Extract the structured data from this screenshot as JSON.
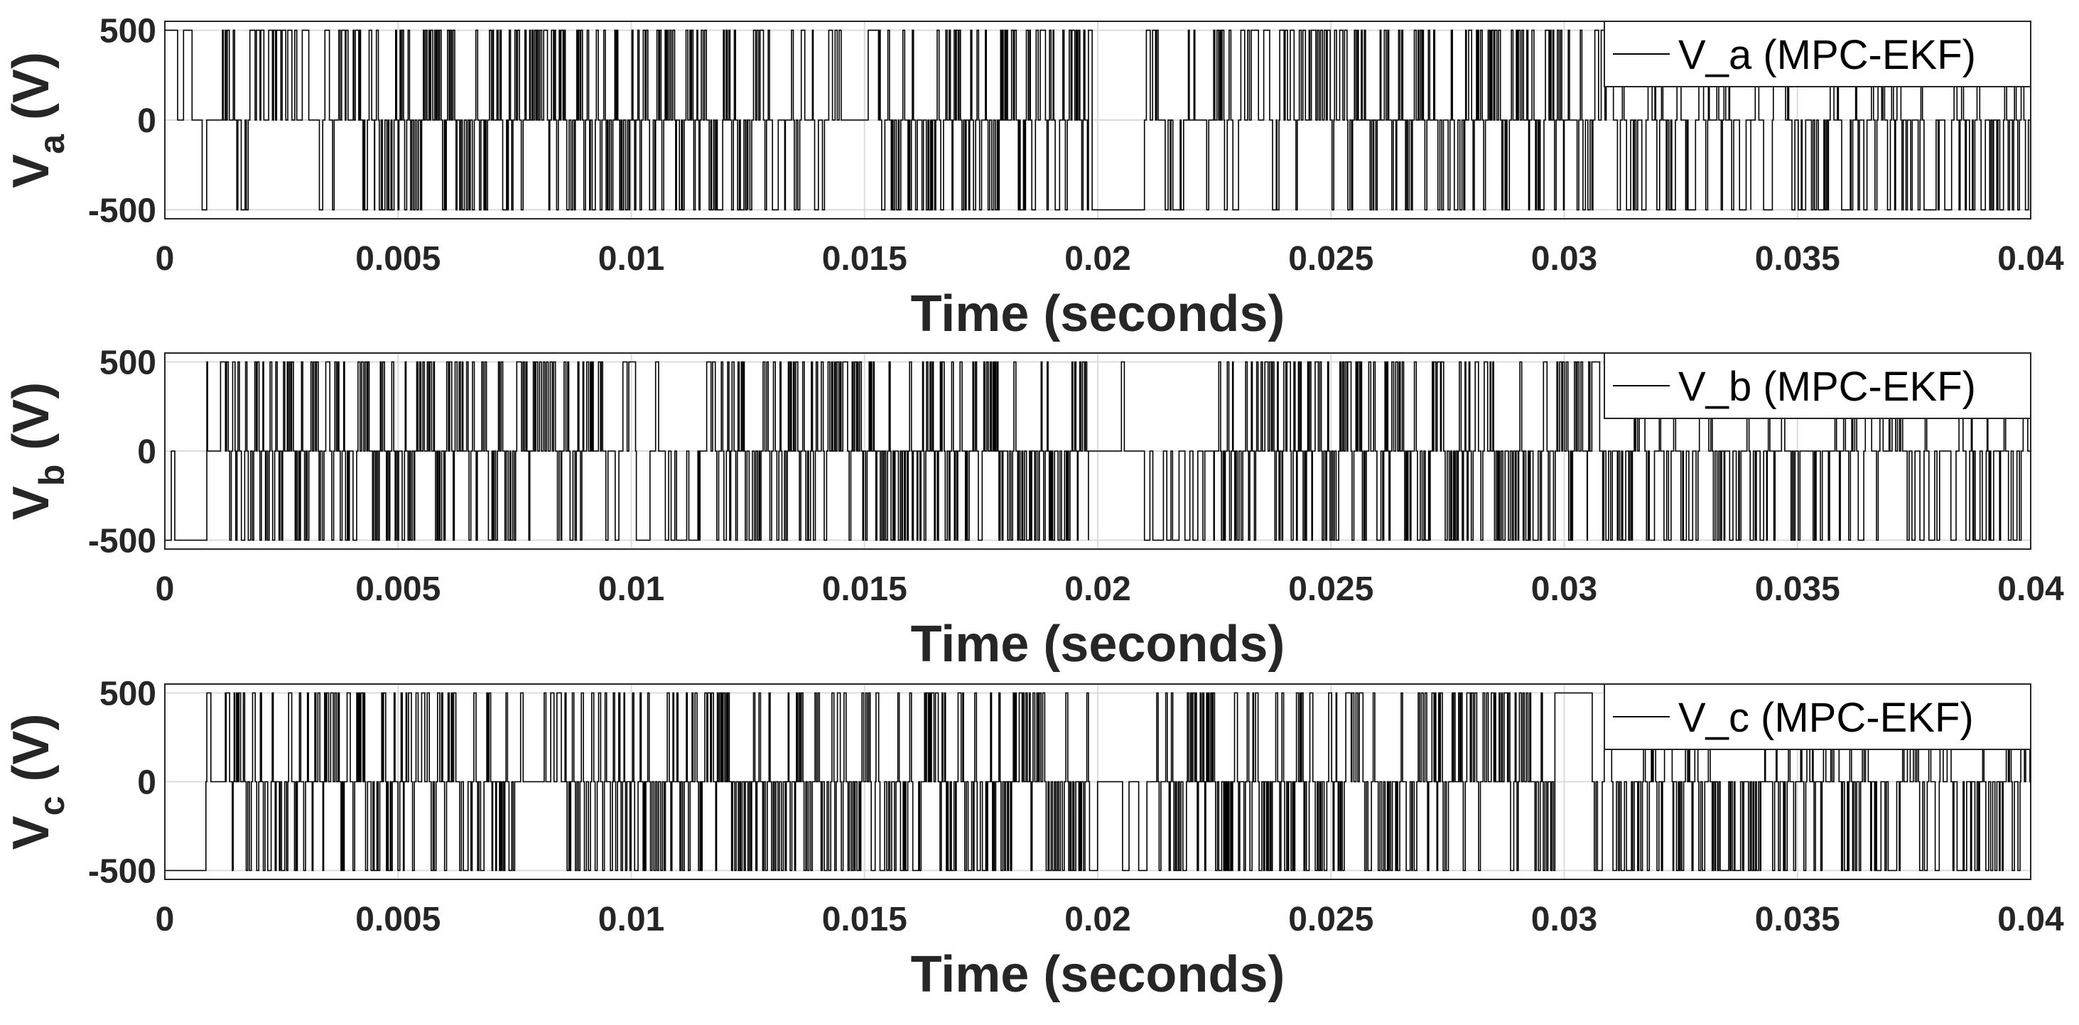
{
  "chart_data": [
    {
      "type": "line",
      "xlabel": "Time (seconds)",
      "ylabel_main": "V",
      "ylabel_sub": "a",
      "ylabel_unit": " (V)",
      "xlim": [
        0,
        0.04
      ],
      "ylim": [
        -550,
        550
      ],
      "xticks": [
        0,
        0.005,
        0.01,
        0.015,
        0.02,
        0.025,
        0.03,
        0.035,
        0.04
      ],
      "xtick_labels": [
        "0",
        "0.005",
        "0.01",
        "0.015",
        "0.02",
        "0.025",
        "0.03",
        "0.035",
        "0.04"
      ],
      "yticks": [
        -500,
        0,
        500
      ],
      "ytick_labels": [
        "-500",
        "0",
        "500"
      ],
      "grid": true,
      "legend_position": "top-right",
      "series": [
        {
          "name": "V_a (MPC-EKF)",
          "color": "#000000",
          "levels": [
            -500,
            0,
            500
          ],
          "segments": [
            {
              "x0": 0.0,
              "x1": 0.0008,
              "from": 500,
              "to": 0,
              "density": 0.05
            },
            {
              "x0": 0.0008,
              "x1": 0.0012,
              "from": -500,
              "to": 0,
              "density": 0.1
            },
            {
              "x0": 0.0012,
              "x1": 0.0045,
              "from": 0,
              "to": 500,
              "density": 0.55,
              "alt": -500,
              "altp": 0.25
            },
            {
              "x0": 0.0045,
              "x1": 0.0125,
              "from": 0,
              "to": 500,
              "density": 0.92,
              "alt": -500,
              "altp": 0.5
            },
            {
              "x0": 0.0125,
              "x1": 0.0145,
              "from": 0,
              "to": 500,
              "density": 0.6,
              "alt": -500,
              "altp": 0.4
            },
            {
              "x0": 0.0145,
              "x1": 0.0153,
              "from": 0,
              "to": 500,
              "density": 0.05
            },
            {
              "x0": 0.0153,
              "x1": 0.0198,
              "from": 0,
              "to": 500,
              "density": 0.85,
              "alt": -500,
              "altp": 0.45
            },
            {
              "x0": 0.0198,
              "x1": 0.021,
              "from": 500,
              "to": -500,
              "density": 0.04
            },
            {
              "x0": 0.021,
              "x1": 0.0245,
              "from": 0,
              "to": 500,
              "density": 0.55,
              "alt": -500,
              "altp": 0.35
            },
            {
              "x0": 0.0245,
              "x1": 0.03,
              "from": 0,
              "to": 500,
              "density": 0.8,
              "alt": -500,
              "altp": 0.4
            },
            {
              "x0": 0.03,
              "x1": 0.034,
              "from": 0,
              "to": 500,
              "density": 0.5,
              "alt": -500,
              "altp": 0.5
            },
            {
              "x0": 0.034,
              "x1": 0.04,
              "from": 0,
              "to": -500,
              "density": 0.55,
              "alt": 500,
              "altp": 0.3
            }
          ]
        }
      ]
    },
    {
      "type": "line",
      "xlabel": "Time (seconds)",
      "ylabel_main": "V",
      "ylabel_sub": "b",
      "ylabel_unit": " (V)",
      "xlim": [
        0,
        0.04
      ],
      "ylim": [
        -550,
        550
      ],
      "xticks": [
        0,
        0.005,
        0.01,
        0.015,
        0.02,
        0.025,
        0.03,
        0.035,
        0.04
      ],
      "xtick_labels": [
        "0",
        "0.005",
        "0.01",
        "0.015",
        "0.02",
        "0.025",
        "0.03",
        "0.035",
        "0.04"
      ],
      "yticks": [
        -500,
        0,
        500
      ],
      "ytick_labels": [
        "-500",
        "0",
        "500"
      ],
      "grid": true,
      "legend_position": "top-right",
      "series": [
        {
          "name": "V_b (MPC-EKF)",
          "color": "#000000",
          "levels": [
            -500,
            0,
            500
          ],
          "segments": [
            {
              "x0": 0.0,
              "x1": 0.0009,
              "from": -500,
              "to": 0,
              "density": 0.05
            },
            {
              "x0": 0.0009,
              "x1": 0.0013,
              "from": 500,
              "to": 0,
              "density": 0.1
            },
            {
              "x0": 0.0013,
              "x1": 0.0095,
              "from": 0,
              "to": 500,
              "density": 0.88,
              "alt": -500,
              "altp": 0.5
            },
            {
              "x0": 0.0095,
              "x1": 0.0118,
              "from": 0,
              "to": -500,
              "density": 0.35,
              "alt": 500,
              "altp": 0.4
            },
            {
              "x0": 0.0118,
              "x1": 0.0198,
              "from": 0,
              "to": 500,
              "density": 0.9,
              "alt": -500,
              "altp": 0.5
            },
            {
              "x0": 0.0198,
              "x1": 0.021,
              "from": 0,
              "to": 500,
              "density": 0.1
            },
            {
              "x0": 0.021,
              "x1": 0.0225,
              "from": -500,
              "to": 0,
              "density": 0.3
            },
            {
              "x0": 0.0225,
              "x1": 0.0305,
              "from": 0,
              "to": 500,
              "density": 0.85,
              "alt": -500,
              "altp": 0.5
            },
            {
              "x0": 0.0305,
              "x1": 0.04,
              "from": 0,
              "to": -500,
              "density": 0.55,
              "alt": 500,
              "altp": 0.3
            }
          ]
        }
      ]
    },
    {
      "type": "line",
      "xlabel": "Time (seconds)",
      "ylabel_main": "V",
      "ylabel_sub": "c",
      "ylabel_unit": " (V)",
      "xlim": [
        0,
        0.04
      ],
      "ylim": [
        -550,
        550
      ],
      "xticks": [
        0,
        0.005,
        0.01,
        0.015,
        0.02,
        0.025,
        0.03,
        0.035,
        0.04
      ],
      "xtick_labels": [
        "0",
        "0.005",
        "0.01",
        "0.015",
        "0.02",
        "0.025",
        "0.03",
        "0.035",
        "0.04"
      ],
      "yticks": [
        -500,
        0,
        500
      ],
      "ytick_labels": [
        "-500",
        "0",
        "500"
      ],
      "grid": true,
      "legend_position": "top-right",
      "series": [
        {
          "name": "V_c (MPC-EKF)",
          "color": "#000000",
          "levels": [
            -500,
            0,
            500
          ],
          "segments": [
            {
              "x0": 0.0,
              "x1": 0.0009,
              "from": -500,
              "to": 0,
              "density": 0.05
            },
            {
              "x0": 0.0009,
              "x1": 0.0013,
              "from": 500,
              "to": 0,
              "density": 0.1
            },
            {
              "x0": 0.0013,
              "x1": 0.0075,
              "from": 0,
              "to": 500,
              "density": 0.82,
              "alt": -500,
              "altp": 0.5
            },
            {
              "x0": 0.0075,
              "x1": 0.0085,
              "from": 0,
              "to": 500,
              "density": 0.3
            },
            {
              "x0": 0.0085,
              "x1": 0.0198,
              "from": 0,
              "to": 500,
              "density": 0.9,
              "alt": -500,
              "altp": 0.5
            },
            {
              "x0": 0.0198,
              "x1": 0.0212,
              "from": 0,
              "to": -500,
              "density": 0.1
            },
            {
              "x0": 0.0212,
              "x1": 0.0298,
              "from": 0,
              "to": 500,
              "density": 0.85,
              "alt": -500,
              "altp": 0.5
            },
            {
              "x0": 0.0298,
              "x1": 0.0306,
              "from": 500,
              "to": 0,
              "density": 0.1
            },
            {
              "x0": 0.0306,
              "x1": 0.04,
              "from": 0,
              "to": -500,
              "density": 0.65,
              "alt": 500,
              "altp": 0.35
            }
          ]
        }
      ]
    }
  ]
}
